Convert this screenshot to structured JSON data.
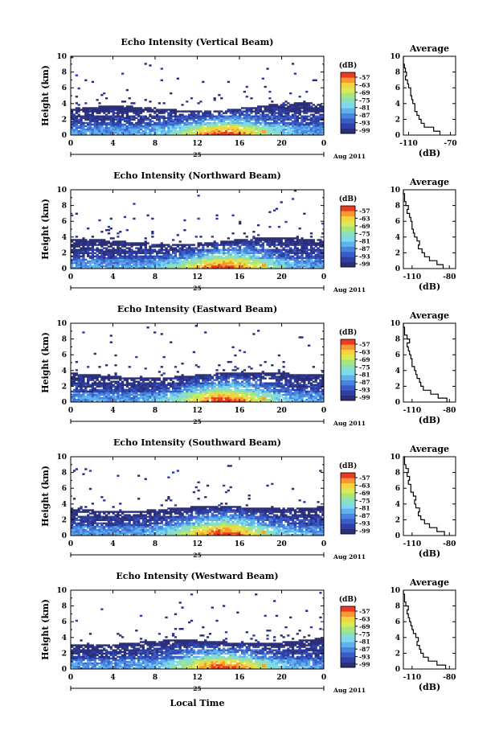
{
  "figure": {
    "xlabel": "Local Time",
    "ylabel": "Height (km)",
    "date_label": "Aug 2011",
    "day_label": "25",
    "colorbar_label": "(dB)",
    "avg_title": "Average",
    "avg_xlabel": "(dB)"
  },
  "chart_data": [
    {
      "type": "heatmap",
      "title": "Echo Intensity (Vertical Beam)",
      "x_ticks": [
        "0",
        "4",
        "8",
        "12",
        "16",
        "20",
        "0"
      ],
      "x_range": [
        0,
        24
      ],
      "y_ticks": [
        "0",
        "2",
        "4",
        "6",
        "8",
        "10"
      ],
      "y_range": [
        0,
        10
      ],
      "colorbar_ticks": [
        "-57",
        "-63",
        "-69",
        "-75",
        "-81",
        "-87",
        "-93",
        "-99"
      ],
      "profile": {
        "title": "Average",
        "x_ticks": [
          "-110",
          "-70"
        ],
        "x_range": [
          -115,
          -65
        ],
        "y_ticks": [
          "0",
          "2",
          "4",
          "6",
          "8",
          "10"
        ],
        "heights": [
          0,
          0.5,
          1,
          1.5,
          2,
          2.5,
          3,
          3.5,
          4,
          4.5,
          5,
          5.5,
          6,
          6.5,
          7,
          7.5,
          8,
          8.5,
          9,
          9.5,
          10
        ],
        "values": [
          -80,
          -86,
          -95,
          -98,
          -100,
          -102,
          -104,
          -104,
          -106,
          -107,
          -108,
          -108,
          -110,
          -111,
          -113,
          -112,
          -113,
          -114,
          -115,
          -115,
          -115
        ]
      }
    },
    {
      "type": "heatmap",
      "title": "Echo Intensity (Northward Beam)",
      "x_ticks": [
        "0",
        "4",
        "8",
        "12",
        "16",
        "20",
        "0"
      ],
      "x_range": [
        0,
        24
      ],
      "y_ticks": [
        "0",
        "2",
        "4",
        "6",
        "8",
        "10"
      ],
      "y_range": [
        0,
        10
      ],
      "colorbar_ticks": [
        "-57",
        "-63",
        "-69",
        "-75",
        "-81",
        "-87",
        "-93",
        "-99"
      ],
      "profile": {
        "title": "Average",
        "x_ticks": [
          "-110",
          "-80"
        ],
        "x_range": [
          -117,
          -75
        ],
        "y_ticks": [
          "0",
          "2",
          "4",
          "6",
          "8",
          "10"
        ],
        "heights": [
          0,
          0.5,
          1,
          1.5,
          2,
          2.5,
          3,
          3.5,
          4,
          4.5,
          5,
          5.5,
          6,
          6.5,
          7,
          7.5,
          8,
          8.5,
          9,
          9.5,
          10
        ],
        "values": [
          -85,
          -90,
          -96,
          -100,
          -102,
          -105,
          -104,
          -106,
          -108,
          -109,
          -110,
          -110,
          -111,
          -112,
          -114,
          -113,
          -115,
          -116,
          -116,
          -117,
          -117
        ]
      }
    },
    {
      "type": "heatmap",
      "title": "Echo Intensity (Eastward Beam)",
      "x_ticks": [
        "0",
        "4",
        "8",
        "12",
        "16",
        "20",
        "0"
      ],
      "x_range": [
        0,
        24
      ],
      "y_ticks": [
        "0",
        "2",
        "4",
        "6",
        "8",
        "10"
      ],
      "y_range": [
        0,
        10
      ],
      "colorbar_ticks": [
        "-57",
        "-63",
        "-69",
        "-75",
        "-81",
        "-87",
        "-93",
        "-99"
      ],
      "profile": {
        "title": "Average",
        "x_ticks": [
          "-110",
          "-80"
        ],
        "x_range": [
          -117,
          -75
        ],
        "y_ticks": [
          "0",
          "2",
          "4",
          "6",
          "8",
          "10"
        ],
        "heights": [
          0,
          0.5,
          1,
          1.5,
          2,
          2.5,
          3,
          3.5,
          4,
          4.5,
          5,
          5.5,
          6,
          6.5,
          7,
          7.5,
          8,
          8.5,
          9,
          9.5,
          10
        ],
        "values": [
          -82,
          -89,
          -95,
          -101,
          -103,
          -104,
          -106,
          -107,
          -108,
          -110,
          -110,
          -111,
          -112,
          -113,
          -114,
          -112,
          -114,
          -116,
          -116,
          -117,
          -117
        ]
      }
    },
    {
      "type": "heatmap",
      "title": "Echo Intensity (Southward Beam)",
      "x_ticks": [
        "0",
        "4",
        "8",
        "12",
        "16",
        "20",
        "0"
      ],
      "x_range": [
        0,
        24
      ],
      "y_ticks": [
        "0",
        "2",
        "4",
        "6",
        "8",
        "10"
      ],
      "y_range": [
        0,
        10
      ],
      "colorbar_ticks": [
        "-57",
        "-63",
        "-69",
        "-75",
        "-81",
        "-87",
        "-93",
        "-99"
      ],
      "profile": {
        "title": "Average",
        "x_ticks": [
          "-110",
          "-80"
        ],
        "x_range": [
          -117,
          -75
        ],
        "y_ticks": [
          "0",
          "2",
          "4",
          "6",
          "8",
          "10"
        ],
        "heights": [
          0,
          0.5,
          1,
          1.5,
          2,
          2.5,
          3,
          3.5,
          4,
          4.5,
          5,
          5.5,
          6,
          6.5,
          7,
          7.5,
          8,
          8.5,
          9,
          9.5,
          10
        ],
        "values": [
          -84,
          -90,
          -96,
          -100,
          -103,
          -105,
          -104,
          -107,
          -108,
          -107,
          -109,
          -111,
          -111,
          -113,
          -112,
          -114,
          -113,
          -115,
          -116,
          -116,
          -117
        ]
      }
    },
    {
      "type": "heatmap",
      "title": "Echo Intensity (Westward Beam)",
      "x_ticks": [
        "0",
        "4",
        "8",
        "12",
        "16",
        "20",
        "0"
      ],
      "x_range": [
        0,
        24
      ],
      "y_ticks": [
        "0",
        "2",
        "4",
        "6",
        "8",
        "10"
      ],
      "y_range": [
        0,
        10
      ],
      "colorbar_ticks": [
        "-57",
        "-63",
        "-69",
        "-75",
        "-81",
        "-87",
        "-93",
        "-99"
      ],
      "profile": {
        "title": "Average",
        "x_ticks": [
          "-110",
          "-80"
        ],
        "x_range": [
          -117,
          -75
        ],
        "y_ticks": [
          "0",
          "2",
          "4",
          "6",
          "8",
          "10"
        ],
        "heights": [
          0,
          0.5,
          1,
          1.5,
          2,
          2.5,
          3,
          3.5,
          4,
          4.5,
          5,
          5.5,
          6,
          6.5,
          7,
          7.5,
          8,
          8.5,
          9,
          9.5,
          10
        ],
        "values": [
          -83,
          -90,
          -97,
          -101,
          -103,
          -104,
          -106,
          -105,
          -107,
          -109,
          -110,
          -111,
          -112,
          -113,
          -114,
          -113,
          -115,
          -116,
          -116,
          -117,
          -117
        ]
      }
    }
  ]
}
